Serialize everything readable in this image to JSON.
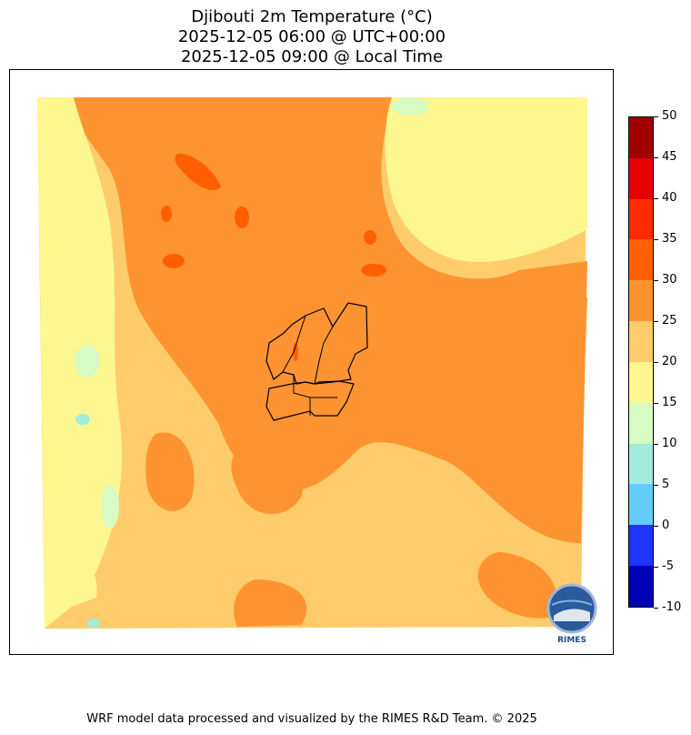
{
  "title": {
    "line1": "Djibouti 2m Temperature (°C)",
    "line2": "2025-12-05 06:00 @ UTC+00:00",
    "line3": "2025-12-05 09:00 @ Local Time"
  },
  "colorbar": {
    "ticks": [
      "50",
      "45",
      "40",
      "35",
      "30",
      "25",
      "20",
      "15",
      "10",
      "5",
      "0",
      "-5",
      "-10"
    ],
    "colors_top_to_bottom": [
      "#a00000",
      "#e60000",
      "#ff2a00",
      "#ff5f00",
      "#fd9331",
      "#fecc6b",
      "#fdf78f",
      "#d8fac3",
      "#a2ebdd",
      "#64cdfc",
      "#1f35ff",
      "#0000b7"
    ]
  },
  "map": {
    "colors": {
      "hot": "#fd9331",
      "warm": "#fecc6b",
      "mild": "#fdf78f",
      "cool": "#d8fac3",
      "cold": "#a2ebdd",
      "veryhot": "#ff5f00",
      "border": "#000000"
    }
  },
  "logo": {
    "text": "RIMES"
  },
  "footer": {
    "text": "WRF model data processed and visualized by the RIMES R&D Team. © 2025"
  }
}
